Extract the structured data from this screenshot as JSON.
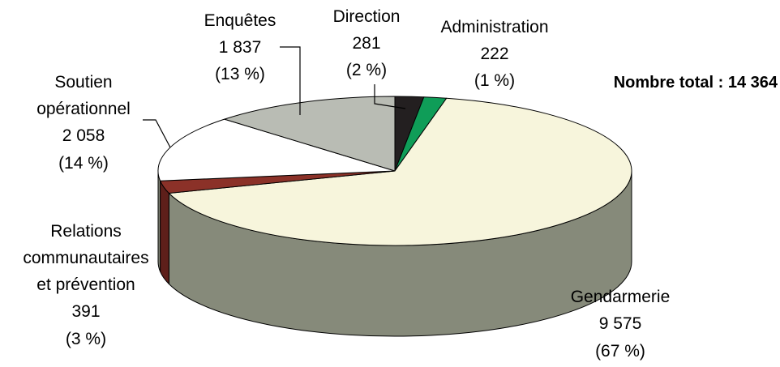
{
  "chart_data": {
    "type": "pie",
    "title": "",
    "total_label": "Nombre total : 14 364",
    "slices": [
      {
        "name": "Direction",
        "value": 281,
        "value_text": "281",
        "percent_text": "(2 %)",
        "color": "#231f20"
      },
      {
        "name": "Administration",
        "value": 222,
        "value_text": "222",
        "percent_text": "(1 %)",
        "color": "#0f9d58"
      },
      {
        "name": "Gendarmerie",
        "value": 9575,
        "value_text": "9 575",
        "percent_text": "(67 %)",
        "color": "#f7f5dc"
      },
      {
        "name": "Relations communautaires et prévention",
        "label_lines": [
          "Relations",
          "communautaires",
          "et prévention"
        ],
        "value": 391,
        "value_text": "391",
        "percent_text": "(3 %)",
        "color": "#8b3128"
      },
      {
        "name": "Soutien opérationnel",
        "label_lines": [
          "Soutien",
          "opérationnel"
        ],
        "value": 2058,
        "value_text": "2 058",
        "percent_text": "(14 %)",
        "color": "#ffffff"
      },
      {
        "name": "Enquêtes",
        "value": 1837,
        "value_text": "1 837",
        "percent_text": "(13 %)",
        "color": "#b9bcb4"
      }
    ],
    "colors": {
      "side_main": "#868a7a",
      "side_red": "#5e1f1a",
      "outline": "#000000"
    }
  }
}
